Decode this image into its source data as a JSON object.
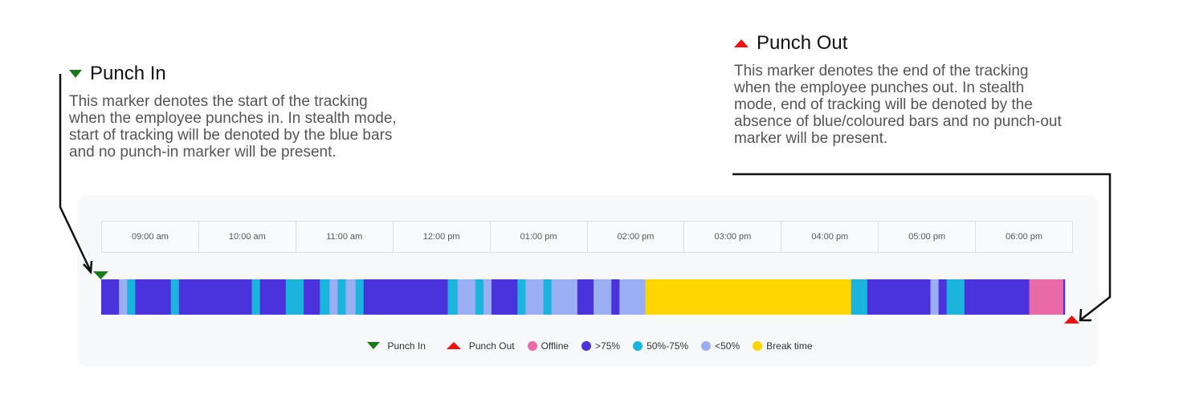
{
  "colors": {
    "punch_in": "#1a7a1a",
    "punch_out": "#f01010",
    "offline": "#ea6aa8",
    "high": "#4a32dc",
    "mid": "#1ab4dc",
    "low": "#9aaef4",
    "break": "#ffd600"
  },
  "callouts": {
    "punch_in": {
      "title": "Punch In",
      "lines": [
        "This marker denotes the start of the tracking",
        "when the employee punches in. In stealth mode,",
        "start of tracking will be denoted by the blue bars",
        "and no punch-in marker will be present."
      ]
    },
    "punch_out": {
      "title": "Punch Out",
      "lines": [
        "This marker denotes the end of the tracking",
        "when the employee punches out. In stealth",
        "mode, end of tracking will be denoted by the",
        "absence of blue/coloured bars and no punch-out",
        "marker will be present."
      ]
    }
  },
  "chart_data": {
    "type": "bar",
    "x_range": [
      "08:30",
      "18:30"
    ],
    "tick_labels": [
      "09:00 am",
      "10:00 am",
      "11:00 am",
      "12:00 pm",
      "01:00 pm",
      "02:00 pm",
      "03:00 pm",
      "04:00 pm",
      "05:00 pm",
      "06:00 pm"
    ],
    "punch_in": "08:30",
    "punch_out": "18:30",
    "segments": [
      {
        "start": "08:30",
        "end": "08:41",
        "level": "high"
      },
      {
        "start": "08:41",
        "end": "08:46",
        "level": "low"
      },
      {
        "start": "08:46",
        "end": "08:51",
        "level": "mid"
      },
      {
        "start": "08:51",
        "end": "09:13",
        "level": "high"
      },
      {
        "start": "09:13",
        "end": "09:18",
        "level": "mid"
      },
      {
        "start": "09:18",
        "end": "10:03",
        "level": "high"
      },
      {
        "start": "10:03",
        "end": "10:08",
        "level": "mid"
      },
      {
        "start": "10:08",
        "end": "10:24",
        "level": "high"
      },
      {
        "start": "10:24",
        "end": "10:35",
        "level": "mid"
      },
      {
        "start": "10:35",
        "end": "10:45",
        "level": "high"
      },
      {
        "start": "10:45",
        "end": "10:51",
        "level": "mid"
      },
      {
        "start": "10:51",
        "end": "10:56",
        "level": "low"
      },
      {
        "start": "10:56",
        "end": "11:01",
        "level": "mid"
      },
      {
        "start": "11:01",
        "end": "11:07",
        "level": "low"
      },
      {
        "start": "11:07",
        "end": "11:12",
        "level": "mid"
      },
      {
        "start": "11:12",
        "end": "12:04",
        "level": "high"
      },
      {
        "start": "12:04",
        "end": "12:10",
        "level": "mid"
      },
      {
        "start": "12:10",
        "end": "12:21",
        "level": "low"
      },
      {
        "start": "12:21",
        "end": "12:26",
        "level": "mid"
      },
      {
        "start": "12:26",
        "end": "12:31",
        "level": "low"
      },
      {
        "start": "12:31",
        "end": "12:47",
        "level": "high"
      },
      {
        "start": "12:47",
        "end": "12:52",
        "level": "mid"
      },
      {
        "start": "12:52",
        "end": "13:03",
        "level": "low"
      },
      {
        "start": "13:03",
        "end": "13:08",
        "level": "mid"
      },
      {
        "start": "13:08",
        "end": "13:24",
        "level": "low"
      },
      {
        "start": "13:24",
        "end": "13:34",
        "level": "high"
      },
      {
        "start": "13:34",
        "end": "13:45",
        "level": "low"
      },
      {
        "start": "13:45",
        "end": "13:50",
        "level": "high"
      },
      {
        "start": "13:50",
        "end": "14:06",
        "level": "low"
      },
      {
        "start": "14:06",
        "end": "16:13",
        "level": "break"
      },
      {
        "start": "16:13",
        "end": "16:23",
        "level": "mid"
      },
      {
        "start": "16:23",
        "end": "17:02",
        "level": "high"
      },
      {
        "start": "17:02",
        "end": "17:07",
        "level": "low"
      },
      {
        "start": "17:07",
        "end": "17:12",
        "level": "high"
      },
      {
        "start": "17:12",
        "end": "17:23",
        "level": "mid"
      },
      {
        "start": "17:23",
        "end": "18:03",
        "level": "high"
      },
      {
        "start": "18:03",
        "end": "18:24",
        "level": "offline"
      },
      {
        "start": "18:24",
        "end": "18:25",
        "level": "high"
      }
    ],
    "legend": [
      {
        "key": "punch_in",
        "label": "Punch In",
        "shape": "triangle-down"
      },
      {
        "key": "punch_out",
        "label": "Punch Out",
        "shape": "triangle-up"
      },
      {
        "key": "offline",
        "label": "Offline",
        "shape": "dot"
      },
      {
        "key": "high",
        "label": ">75%",
        "shape": "dot"
      },
      {
        "key": "mid",
        "label": "50%-75%",
        "shape": "dot"
      },
      {
        "key": "low",
        "label": "<50%",
        "shape": "dot"
      },
      {
        "key": "break",
        "label": "Break time",
        "shape": "dot"
      }
    ],
    "legend_position": "bottom-center"
  }
}
